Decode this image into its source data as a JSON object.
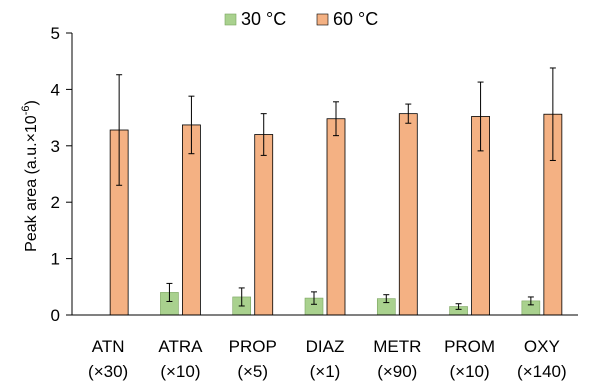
{
  "chart_data": {
    "type": "bar",
    "ylabel_main": "Peak area (a.u.×10",
    "ylabel_exp": "-6",
    "ylabel_end": ")",
    "ylim": [
      0,
      5
    ],
    "yticks": [
      "0",
      "1",
      "2",
      "3",
      "4",
      "5"
    ],
    "grid": false,
    "legend_position": "top-center",
    "categories": [
      {
        "name": "ATN",
        "factor": "(×30)"
      },
      {
        "name": "ATRA",
        "factor": "(×10)"
      },
      {
        "name": "PROP",
        "factor": "(×5)"
      },
      {
        "name": "DIAZ",
        "factor": "(×1)"
      },
      {
        "name": "METR",
        "factor": "(×90)"
      },
      {
        "name": "PROM",
        "factor": "(×10)"
      },
      {
        "name": "OXY",
        "factor": "(×140)"
      }
    ],
    "series": [
      {
        "name": "30 °C",
        "color": "#a9d18e",
        "values": [
          0.0,
          0.4,
          0.32,
          0.3,
          0.29,
          0.15,
          0.25
        ],
        "errors": [
          0.0,
          0.16,
          0.16,
          0.11,
          0.07,
          0.05,
          0.07
        ]
      },
      {
        "name": "60 °C",
        "color": "#f4b183",
        "values": [
          3.28,
          3.37,
          3.2,
          3.48,
          3.57,
          3.52,
          3.56
        ],
        "errors": [
          0.98,
          0.51,
          0.37,
          0.3,
          0.17,
          0.61,
          0.82
        ]
      }
    ]
  }
}
